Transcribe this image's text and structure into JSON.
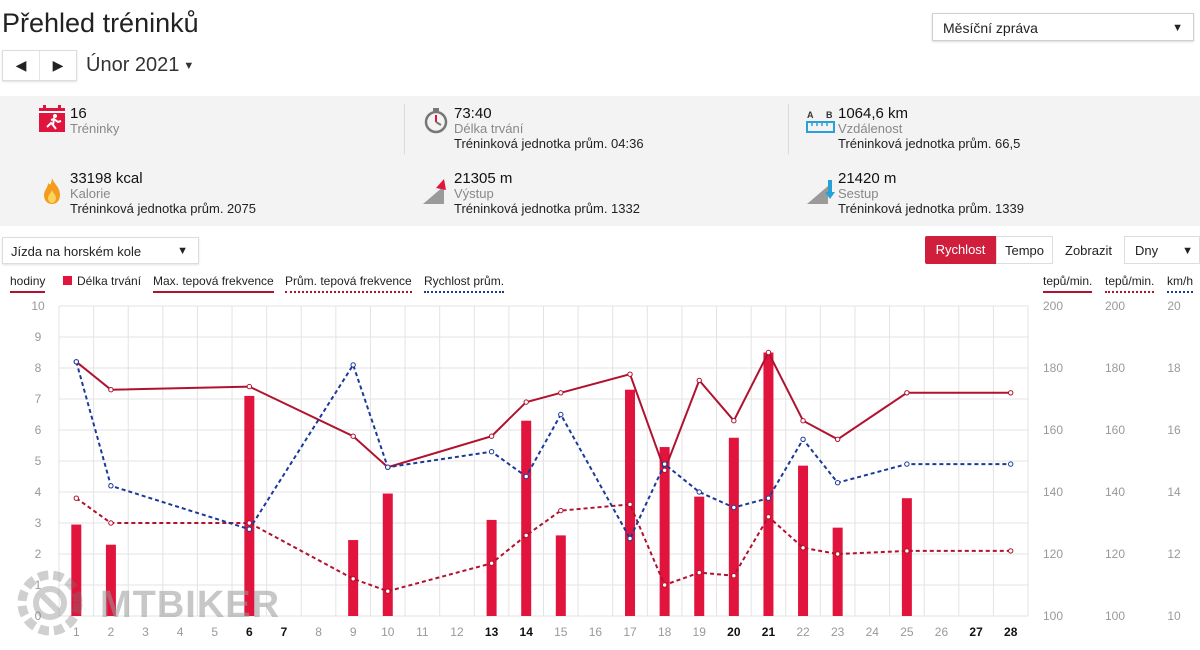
{
  "page_title": "Přehled tréninků",
  "report_select": {
    "value": "Měsíční zpráva"
  },
  "period": {
    "label": "Únor 2021",
    "prev_icon": "triangle-left",
    "next_icon": "triangle-right"
  },
  "summary": [
    {
      "value": "16",
      "label": "Tréninky",
      "avg": "",
      "icon": "calendar-runner-icon"
    },
    {
      "value": "73:40",
      "label": "Délka trvání",
      "avg": "Tréninková jednotka prům. 04:36",
      "icon": "stopwatch-icon"
    },
    {
      "value": "1064,6 km",
      "label": "Vzdálenost",
      "avg": "Tréninková jednotka prům. 66,5",
      "icon": "ruler-ab-icon"
    },
    {
      "value": "33198 kcal",
      "label": "Kalorie",
      "avg": "Tréninková jednotka prům. 2075",
      "icon": "flame-icon"
    },
    {
      "value": "21305 m",
      "label": "Výstup",
      "avg": "Tréninková jednotka prům. 1332",
      "icon": "ascent-icon"
    },
    {
      "value": "21420 m",
      "label": "Sestup",
      "avg": "Tréninková jednotka prům. 1339",
      "icon": "descent-icon"
    }
  ],
  "sport_select": {
    "value": "Jízda na horském kole"
  },
  "toggles": {
    "speed": "Rychlost",
    "pace": "Tempo"
  },
  "show": {
    "label": "Zobrazit",
    "value": "Dny"
  },
  "legend": {
    "hours_axis": "hodiny",
    "duration": "Délka trvání",
    "max_hr": "Max. tepová frekvence",
    "avg_hr": "Prům. tepová frekvence",
    "avg_speed": "Rychlost prům.",
    "axis_hr_max": "tepů/min.",
    "axis_hr_avg": "tepů/min.",
    "axis_speed": "km/h"
  },
  "colors": {
    "accent": "#d01f3c",
    "bar": "#e0143c",
    "max_hr": "#b0122f",
    "avg_hr": "#b0122f",
    "speed": "#1a3a9a"
  },
  "watermark": "MTBIKER",
  "chart_data": {
    "type": "bar+line",
    "x": [
      1,
      2,
      3,
      4,
      5,
      6,
      7,
      8,
      9,
      10,
      11,
      12,
      13,
      14,
      15,
      16,
      17,
      18,
      19,
      20,
      21,
      22,
      23,
      24,
      25,
      26,
      27,
      28
    ],
    "bold_days": [
      6,
      7,
      13,
      14,
      20,
      21,
      27,
      28
    ],
    "y_left": {
      "label": "hodiny",
      "range": [
        0,
        10
      ],
      "ticks": [
        0,
        1,
        2,
        3,
        4,
        5,
        6,
        7,
        8,
        9,
        10
      ]
    },
    "y_hr": {
      "label": "tepů/min.",
      "range": [
        100,
        200
      ],
      "ticks": [
        100,
        120,
        140,
        160,
        180,
        200
      ]
    },
    "y_speed": {
      "label": "km/h",
      "range": [
        10,
        20
      ],
      "ticks": [
        10,
        12,
        14,
        16,
        18,
        20
      ]
    },
    "series": [
      {
        "name": "Délka trvání",
        "kind": "bar",
        "axis": "y_left",
        "points": [
          [
            1,
            2.95
          ],
          [
            2,
            2.3
          ],
          [
            6,
            7.1
          ],
          [
            9,
            2.45
          ],
          [
            10,
            3.95
          ],
          [
            13,
            3.1
          ],
          [
            14,
            6.3
          ],
          [
            15,
            2.6
          ],
          [
            17,
            7.3
          ],
          [
            18,
            5.45
          ],
          [
            19,
            3.85
          ],
          [
            20,
            5.75
          ],
          [
            21,
            8.5
          ],
          [
            22,
            4.85
          ],
          [
            23,
            2.85
          ],
          [
            25,
            3.8
          ]
        ]
      },
      {
        "name": "Max. tepová frekvence",
        "kind": "line",
        "axis": "y_hr",
        "points": [
          [
            1,
            182
          ],
          [
            2,
            173
          ],
          [
            6,
            174
          ],
          [
            9,
            158
          ],
          [
            10,
            148
          ],
          [
            13,
            158
          ],
          [
            14,
            169
          ],
          [
            15,
            172
          ],
          [
            17,
            178
          ],
          [
            18,
            147
          ],
          [
            19,
            176
          ],
          [
            20,
            163
          ],
          [
            21,
            185
          ],
          [
            22,
            163
          ],
          [
            23,
            157
          ],
          [
            25,
            172
          ],
          [
            28,
            172
          ]
        ]
      },
      {
        "name": "Prům. tepová frekvence",
        "kind": "dashed",
        "axis": "y_hr",
        "points": [
          [
            1,
            138
          ],
          [
            2,
            130
          ],
          [
            6,
            130
          ],
          [
            9,
            112
          ],
          [
            10,
            108
          ],
          [
            13,
            117
          ],
          [
            14,
            126
          ],
          [
            15,
            134
          ],
          [
            17,
            136
          ],
          [
            18,
            110
          ],
          [
            19,
            114
          ],
          [
            20,
            113
          ],
          [
            21,
            132
          ],
          [
            22,
            122
          ],
          [
            23,
            120
          ],
          [
            25,
            121
          ],
          [
            28,
            121
          ]
        ]
      },
      {
        "name": "Rychlost prům.",
        "kind": "dashed",
        "axis": "y_speed",
        "points": [
          [
            1,
            18.2
          ],
          [
            2,
            14.2
          ],
          [
            6,
            12.8
          ],
          [
            9,
            18.1
          ],
          [
            10,
            14.8
          ],
          [
            13,
            15.3
          ],
          [
            14,
            14.5
          ],
          [
            15,
            16.5
          ],
          [
            17,
            12.5
          ],
          [
            18,
            14.9
          ],
          [
            19,
            14.0
          ],
          [
            20,
            13.5
          ],
          [
            21,
            13.8
          ],
          [
            22,
            15.7
          ],
          [
            23,
            14.3
          ],
          [
            25,
            14.9
          ],
          [
            28,
            14.9
          ]
        ]
      }
    ]
  }
}
